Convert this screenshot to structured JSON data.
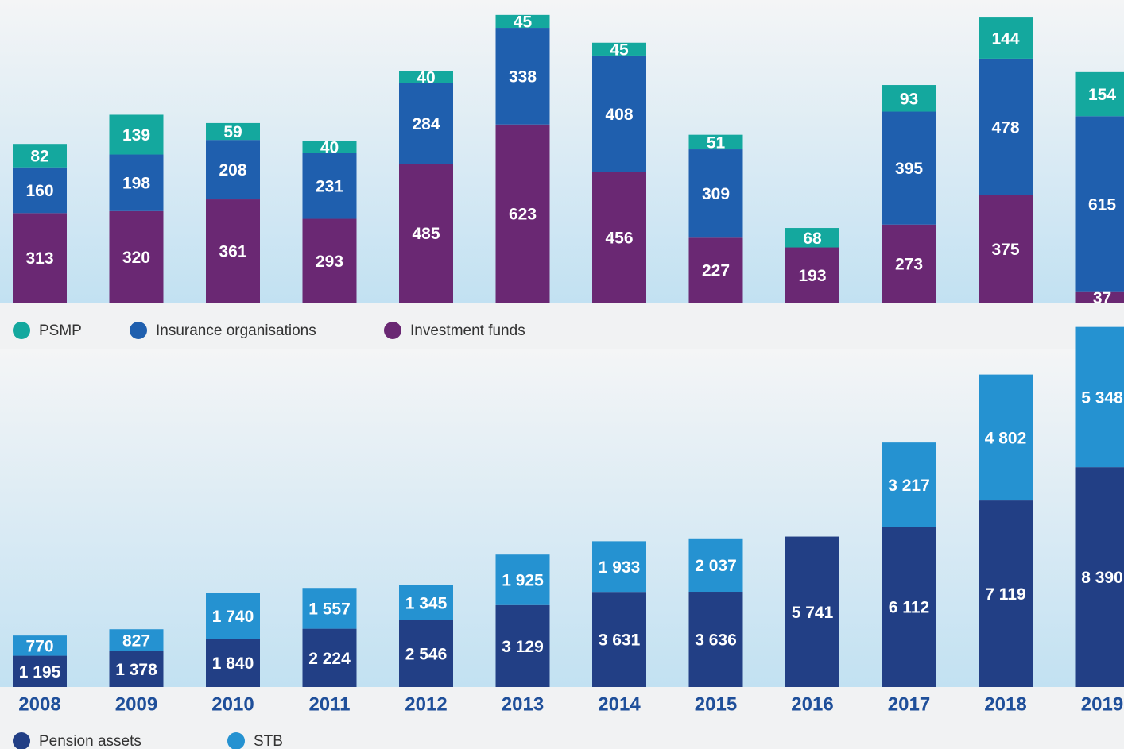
{
  "chart_data": [
    {
      "type": "stacked_bar",
      "series": [
        {
          "name": "Investment funds",
          "color": "#6a2873",
          "values": [
            313,
            320,
            361,
            293,
            485,
            623,
            456,
            227,
            193,
            273,
            375,
            37
          ]
        },
        {
          "name": "Insurance organisations",
          "color": "#1f5fae",
          "values": [
            160,
            198,
            208,
            231,
            284,
            338,
            408,
            309,
            null,
            395,
            478,
            615
          ]
        },
        {
          "name": "PSMP",
          "color": "#14a89e",
          "values": [
            82,
            139,
            59,
            40,
            40,
            45,
            45,
            51,
            68,
            93,
            144,
            154
          ]
        }
      ],
      "legend_order": [
        "PSMP",
        "Insurance organisations",
        "Investment funds"
      ],
      "ylim": [
        0,
        1050
      ]
    },
    {
      "type": "stacked_bar",
      "categories": [
        "2008",
        "2009",
        "2010",
        "2011",
        "2012",
        "2013",
        "2014",
        "2015",
        "2016",
        "2017",
        "2018",
        "2019"
      ],
      "series": [
        {
          "name": "Pension assets",
          "color": "#223f85",
          "values": [
            1195,
            1378,
            1840,
            2224,
            2546,
            3129,
            3631,
            3636,
            5741,
            6112,
            7119,
            8390
          ],
          "value_labels": [
            "1 195",
            "1 378",
            "1 840",
            "2 224",
            "2 546",
            "3 129",
            "3 631",
            "3 636",
            "5 741",
            "6 112",
            "7 119",
            "8 390"
          ]
        },
        {
          "name": "STB",
          "color": "#2592d1",
          "values": [
            770,
            827,
            1740,
            1557,
            1345,
            1925,
            1933,
            2037,
            null,
            3217,
            4802,
            5348
          ],
          "value_labels": [
            "770",
            "827",
            "1 740",
            "1 557",
            "1 345",
            "1 925",
            "1 933",
            "2 037",
            null,
            "3 217",
            "4 802",
            "5 348"
          ]
        }
      ],
      "ylim": [
        0,
        14000
      ]
    }
  ]
}
